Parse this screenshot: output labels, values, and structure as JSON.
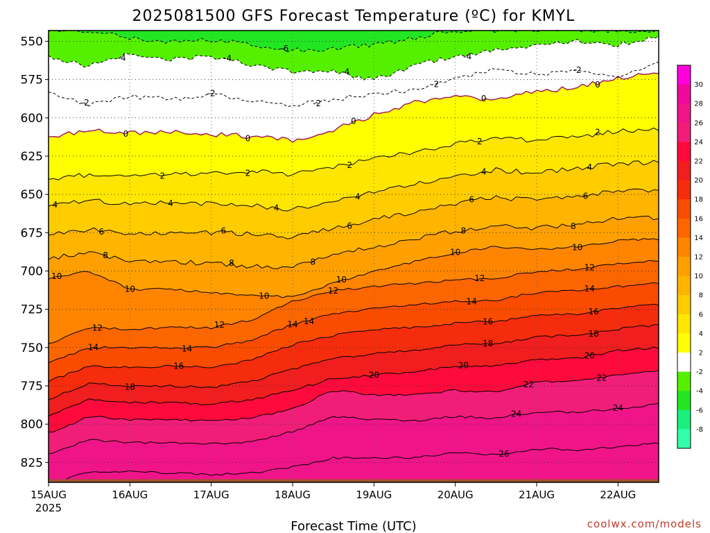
{
  "chart_data": {
    "type": "heatmap",
    "title": "2025081500 GFS Forecast Temperature (ºC) for KMYL",
    "xlabel": "Forecast Time (UTC)",
    "ylabel": "",
    "x_ticks": [
      "15AUG",
      "16AUG",
      "17AUG",
      "18AUG",
      "19AUG",
      "20AUG",
      "21AUG",
      "22AUG"
    ],
    "x_first_tick_year": "2025",
    "y_ticks": [
      550,
      575,
      600,
      625,
      650,
      675,
      700,
      725,
      750,
      775,
      800,
      825
    ],
    "y_axis": "pressure (hPa), increasing downward",
    "ylim": [
      543,
      838
    ],
    "xlim_days": [
      0,
      7.5
    ],
    "grid": "dotted",
    "colorbar": {
      "position": "right",
      "ticks": [
        30,
        28,
        26,
        24,
        22,
        20,
        18,
        16,
        14,
        12,
        10,
        8,
        6,
        4,
        2,
        -2,
        -4,
        -6,
        -8
      ],
      "colors": [
        "#ff00dd",
        "#f0089c",
        "#f01489",
        "#f01e78",
        "#ff0a3c",
        "#f01e1e",
        "#f52d0c",
        "#fa4c00",
        "#fc6600",
        "#ff8400",
        "#ffa000",
        "#ffb400",
        "#ffcc00",
        "#ffe600",
        "#ffff00",
        "#ffffff",
        "#55f000",
        "#22e622",
        "#19f07c",
        "#33ffaa"
      ]
    },
    "contours": [
      {
        "level": 26,
        "p": [
          840,
          831,
          831,
          832,
          833,
          832,
          828,
          822,
          822,
          822,
          819,
          820,
          816,
          817,
          815,
          812
        ],
        "labels": [
          {
            "t": "26",
            "day": 5.6
          }
        ]
      },
      {
        "level": 24,
        "p": [
          820,
          810,
          812,
          812,
          813,
          811,
          805,
          795,
          797,
          798,
          795,
          796,
          792,
          792,
          790,
          787
        ],
        "labels": [
          {
            "t": "24",
            "day": 5.75
          },
          {
            "t": "24",
            "day": 7.0
          }
        ]
      },
      {
        "level": 22,
        "p": [
          806,
          795,
          797,
          797,
          798,
          796,
          790,
          778,
          781,
          781,
          778,
          779,
          772,
          772,
          768,
          765
        ],
        "labels": [
          {
            "t": "22",
            "day": 5.9
          },
          {
            "t": "22",
            "day": 6.8
          }
        ]
      },
      {
        "level": 20,
        "p": [
          795,
          784,
          786,
          786,
          787,
          784,
          778,
          770,
          768,
          766,
          762,
          762,
          758,
          757,
          752,
          750
        ],
        "labels": [
          {
            "t": "20",
            "day": 4.0
          },
          {
            "t": "20",
            "day": 5.1
          },
          {
            "t": "20",
            "day": 6.65
          }
        ]
      },
      {
        "level": 18,
        "p": [
          784,
          773,
          775,
          775,
          776,
          772,
          764,
          757,
          754,
          752,
          748,
          748,
          743,
          742,
          738,
          735
        ],
        "labels": [
          {
            "t": "18",
            "day": 1.0
          },
          {
            "t": "18",
            "day": 5.4
          },
          {
            "t": "18",
            "day": 6.7
          }
        ]
      },
      {
        "level": 16,
        "p": [
          772,
          762,
          763,
          762,
          763,
          758,
          748,
          742,
          738,
          737,
          734,
          733,
          729,
          728,
          724,
          722
        ],
        "labels": [
          {
            "t": "16",
            "day": 1.6
          },
          {
            "t": "16",
            "day": 5.4
          },
          {
            "t": "16",
            "day": 6.7
          }
        ]
      },
      {
        "level": 14,
        "p": [
          760,
          750,
          750,
          750,
          750,
          745,
          735,
          728,
          724,
          722,
          720,
          719,
          714,
          713,
          710,
          708
        ],
        "labels": [
          {
            "t": "14",
            "day": 0.55
          },
          {
            "t": "14",
            "day": 1.7
          },
          {
            "t": "14",
            "day": 3.0
          },
          {
            "t": "14",
            "day": 3.2
          },
          {
            "t": "14",
            "day": 5.2
          },
          {
            "t": "14",
            "day": 6.65
          }
        ]
      },
      {
        "level": 12,
        "p": [
          748,
          737,
          738,
          737,
          737,
          732,
          720,
          713,
          710,
          708,
          706,
          705,
          700,
          699,
          695,
          693
        ],
        "labels": [
          {
            "t": "12",
            "day": 0.6
          },
          {
            "t": "12",
            "day": 2.1
          },
          {
            "t": "12",
            "day": 3.5
          },
          {
            "t": "12",
            "day": 5.3
          },
          {
            "t": "12",
            "day": 6.65
          }
        ]
      },
      {
        "level": 10,
        "p": [
          705,
          700,
          712,
          712,
          714,
          716,
          717,
          708,
          700,
          694,
          688,
          684,
          686,
          684,
          680,
          679
        ],
        "labels": [
          {
            "t": "10",
            "day": 0.1
          },
          {
            "t": "10",
            "day": 1.0
          },
          {
            "t": "10",
            "day": 2.65
          },
          {
            "t": "10",
            "day": 3.6
          },
          {
            "t": "10",
            "day": 5.0
          },
          {
            "t": "10",
            "day": 6.5
          }
        ]
      },
      {
        "level": 8,
        "p": [
          692,
          688,
          693,
          694,
          695,
          697,
          698,
          690,
          684,
          679,
          674,
          670,
          672,
          669,
          666,
          665
        ],
        "labels": [
          {
            "t": "8",
            "day": 0.7
          },
          {
            "t": "8",
            "day": 2.25
          },
          {
            "t": "8",
            "day": 3.25
          },
          {
            "t": "8",
            "day": 5.1
          },
          {
            "t": "8",
            "day": 6.45
          }
        ]
      },
      {
        "level": 6,
        "p": [
          676,
          673,
          675,
          675,
          675,
          676,
          678,
          672,
          666,
          662,
          656,
          652,
          654,
          651,
          648,
          647
        ],
        "labels": [
          {
            "t": "6",
            "day": 0.65
          },
          {
            "t": "6",
            "day": 2.15
          },
          {
            "t": "6",
            "day": 3.7
          },
          {
            "t": "6",
            "day": 5.2
          },
          {
            "t": "6",
            "day": 6.6
          }
        ]
      },
      {
        "level": 4,
        "p": [
          657,
          654,
          656,
          655,
          656,
          657,
          660,
          654,
          648,
          643,
          638,
          634,
          636,
          633,
          630,
          629
        ],
        "labels": [
          {
            "t": "4",
            "day": 0.08
          },
          {
            "t": "4",
            "day": 1.5
          },
          {
            "t": "4",
            "day": 2.8
          },
          {
            "t": "4",
            "day": 3.8
          },
          {
            "t": "4",
            "day": 5.35
          },
          {
            "t": "4",
            "day": 6.65
          }
        ]
      },
      {
        "level": 2,
        "p": [
          640,
          637,
          638,
          637,
          636,
          635,
          637,
          632,
          627,
          622,
          617,
          613,
          615,
          612,
          609,
          607
        ],
        "labels": [
          {
            "t": "2",
            "day": 1.4
          },
          {
            "t": "2",
            "day": 2.45
          },
          {
            "t": "2",
            "day": 3.7
          },
          {
            "t": "2",
            "day": 5.3
          },
          {
            "t": "2",
            "day": 6.75
          }
        ]
      },
      {
        "level": 0,
        "p": [
          612,
          608,
          610,
          609,
          611,
          612,
          615,
          608,
          598,
          590,
          586,
          588,
          583,
          580,
          574,
          571
        ],
        "labels": [
          {
            "t": "0",
            "day": 0.95
          },
          {
            "t": "0",
            "day": 2.45
          },
          {
            "t": "0",
            "day": 3.75
          },
          {
            "t": "0",
            "day": 5.35
          },
          {
            "t": "0",
            "day": 6.75
          }
        ]
      },
      {
        "level": -2,
        "p": [
          584,
          591,
          586,
          588,
          585,
          588,
          592,
          588,
          584,
          582,
          575,
          568,
          572,
          569,
          573,
          564
        ],
        "labels": [
          {
            "t": "-2",
            "day": 0.45
          },
          {
            "t": "-2",
            "day": 2.0
          },
          {
            "t": "-2",
            "day": 3.3
          },
          {
            "t": "-2",
            "day": 4.75
          },
          {
            "t": "-2",
            "day": 6.5
          }
        ]
      },
      {
        "level": -4,
        "p": [
          560,
          566,
          558,
          562,
          560,
          565,
          570,
          570,
          575,
          566,
          560,
          555,
          553,
          550,
          552,
          547
        ],
        "labels": [
          {
            "t": "-4",
            "day": 0.9
          },
          {
            "t": "-4",
            "day": 2.2
          },
          {
            "t": "-4",
            "day": 3.65
          },
          {
            "t": "-4",
            "day": 5.15
          }
        ]
      },
      {
        "level": -6,
        "p": [
          543,
          543,
          548,
          550,
          549,
          552,
          556,
          555,
          552,
          548,
          543,
          543,
          543,
          543,
          543,
          543
        ],
        "labels": [
          {
            "t": "-6",
            "day": 2.9
          }
        ]
      }
    ],
    "ground_surface_p": 836,
    "ground_color": "#a0522d"
  },
  "credit": "coolwx.com/models"
}
